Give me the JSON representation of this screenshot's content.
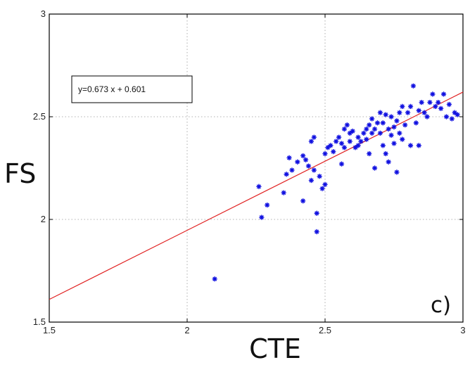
{
  "chart_data": {
    "type": "scatter",
    "xlabel": "CTE",
    "ylabel": "FS",
    "xlim": [
      1.5,
      3
    ],
    "ylim": [
      1.5,
      3
    ],
    "xticks": [
      "1.5",
      "2",
      "2.5",
      "3"
    ],
    "yticks": [
      "1.5",
      "2",
      "2.5",
      "3"
    ],
    "grid": true,
    "panel_label": "c)",
    "marker_color": "#1010e0",
    "fit_color": "#e02020",
    "fit": {
      "slope": 0.673,
      "intercept": 0.601,
      "label": "y=0.673 x + 0.601"
    },
    "points": [
      [
        2.1,
        1.71
      ],
      [
        2.26,
        2.16
      ],
      [
        2.27,
        2.01
      ],
      [
        2.29,
        2.07
      ],
      [
        2.35,
        2.13
      ],
      [
        2.36,
        2.22
      ],
      [
        2.37,
        2.3
      ],
      [
        2.38,
        2.24
      ],
      [
        2.4,
        2.28
      ],
      [
        2.42,
        2.31
      ],
      [
        2.43,
        2.29
      ],
      [
        2.42,
        2.09
      ],
      [
        2.44,
        2.26
      ],
      [
        2.45,
        2.19
      ],
      [
        2.45,
        2.38
      ],
      [
        2.46,
        2.4
      ],
      [
        2.46,
        2.24
      ],
      [
        2.47,
        1.94
      ],
      [
        2.47,
        2.03
      ],
      [
        2.48,
        2.21
      ],
      [
        2.49,
        2.15
      ],
      [
        2.5,
        2.17
      ],
      [
        2.5,
        2.32
      ],
      [
        2.51,
        2.35
      ],
      [
        2.52,
        2.36
      ],
      [
        2.53,
        2.33
      ],
      [
        2.54,
        2.38
      ],
      [
        2.55,
        2.4
      ],
      [
        2.56,
        2.27
      ],
      [
        2.56,
        2.37
      ],
      [
        2.57,
        2.44
      ],
      [
        2.57,
        2.35
      ],
      [
        2.58,
        2.46
      ],
      [
        2.59,
        2.42
      ],
      [
        2.59,
        2.38
      ],
      [
        2.6,
        2.43
      ],
      [
        2.61,
        2.35
      ],
      [
        2.62,
        2.36
      ],
      [
        2.62,
        2.4
      ],
      [
        2.63,
        2.38
      ],
      [
        2.64,
        2.42
      ],
      [
        2.65,
        2.44
      ],
      [
        2.65,
        2.39
      ],
      [
        2.66,
        2.32
      ],
      [
        2.66,
        2.46
      ],
      [
        2.67,
        2.49
      ],
      [
        2.67,
        2.42
      ],
      [
        2.68,
        2.25
      ],
      [
        2.68,
        2.44
      ],
      [
        2.69,
        2.47
      ],
      [
        2.7,
        2.42
      ],
      [
        2.7,
        2.52
      ],
      [
        2.71,
        2.36
      ],
      [
        2.71,
        2.47
      ],
      [
        2.72,
        2.51
      ],
      [
        2.72,
        2.32
      ],
      [
        2.73,
        2.44
      ],
      [
        2.73,
        2.28
      ],
      [
        2.74,
        2.5
      ],
      [
        2.74,
        2.41
      ],
      [
        2.75,
        2.37
      ],
      [
        2.75,
        2.45
      ],
      [
        2.76,
        2.48
      ],
      [
        2.76,
        2.23
      ],
      [
        2.77,
        2.52
      ],
      [
        2.77,
        2.42
      ],
      [
        2.78,
        2.55
      ],
      [
        2.78,
        2.39
      ],
      [
        2.79,
        2.46
      ],
      [
        2.8,
        2.52
      ],
      [
        2.81,
        2.55
      ],
      [
        2.81,
        2.36
      ],
      [
        2.82,
        2.65
      ],
      [
        2.83,
        2.47
      ],
      [
        2.84,
        2.53
      ],
      [
        2.84,
        2.36
      ],
      [
        2.85,
        2.57
      ],
      [
        2.86,
        2.52
      ],
      [
        2.87,
        2.5
      ],
      [
        2.88,
        2.57
      ],
      [
        2.89,
        2.61
      ],
      [
        2.9,
        2.55
      ],
      [
        2.91,
        2.57
      ],
      [
        2.92,
        2.54
      ],
      [
        2.93,
        2.61
      ],
      [
        2.94,
        2.5
      ],
      [
        2.95,
        2.56
      ],
      [
        2.96,
        2.49
      ],
      [
        2.97,
        2.52
      ],
      [
        2.98,
        2.51
      ]
    ]
  }
}
